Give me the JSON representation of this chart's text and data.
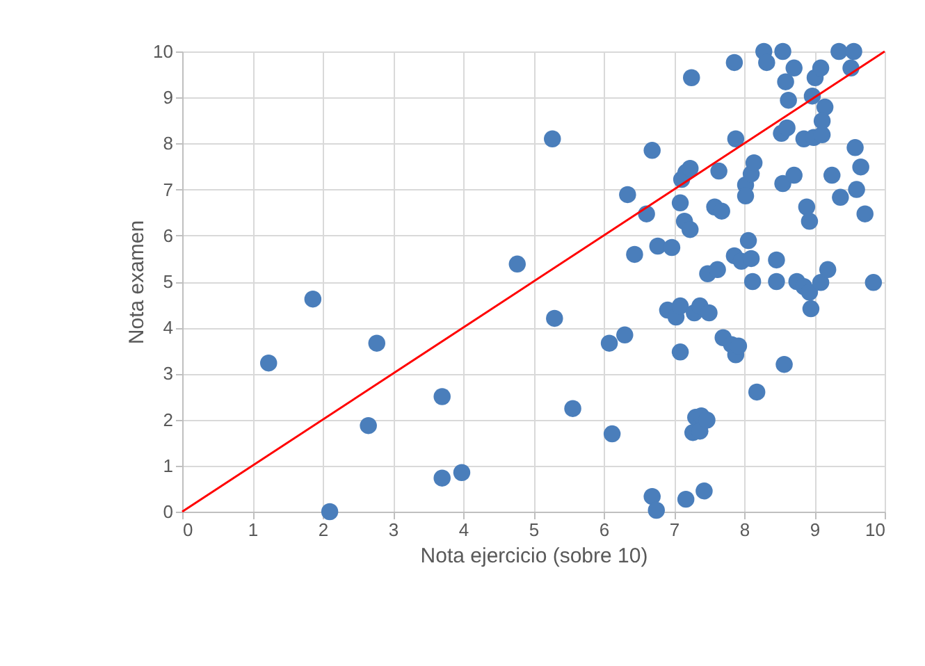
{
  "chart_data": {
    "type": "scatter",
    "xlabel": "Nota ejercicio (sobre 10)",
    "ylabel": "Nota examen",
    "xlim": [
      0,
      10
    ],
    "ylim": [
      0,
      10
    ],
    "xticks": [
      0,
      1,
      2,
      3,
      4,
      5,
      6,
      7,
      8,
      9,
      10
    ],
    "yticks": [
      0,
      1,
      2,
      3,
      4,
      5,
      6,
      7,
      8,
      9,
      10
    ],
    "grid": true,
    "series": [
      {
        "color": "#4a7ebb",
        "marker": "circle",
        "x": [
          1.23,
          1.86,
          2.77,
          2.65,
          2.1,
          3.7,
          3.7,
          3.98,
          4.77,
          5.27,
          5.3,
          5.56,
          6.12,
          6.08,
          6.3,
          6.34,
          6.44,
          6.61,
          6.69,
          6.77,
          6.69,
          6.75,
          6.97,
          6.91,
          7.03,
          7.09,
          7.11,
          7.17,
          7.23,
          7.09,
          7.15,
          7.23,
          7.09,
          7.17,
          7.25,
          7.29,
          7.37,
          7.31,
          7.39,
          7.27,
          7.37,
          7.47,
          7.43,
          7.5,
          7.48,
          7.62,
          7.58,
          7.68,
          7.64,
          7.7,
          7.82,
          7.88,
          7.92,
          7.86,
          7.88,
          7.86,
          7.96,
          8.02,
          8.02,
          8.1,
          8.14,
          8.06,
          8.1,
          8.12,
          8.18,
          8.28,
          8.32,
          8.46,
          8.46,
          8.55,
          8.57,
          8.55,
          8.53,
          8.61,
          8.59,
          8.63,
          8.71,
          8.71,
          8.75,
          8.85,
          8.89,
          8.93,
          8.93,
          8.95,
          8.85,
          8.97,
          9.01,
          9.09,
          8.99,
          9.11,
          9.15,
          9.11,
          9.09,
          9.19,
          9.25,
          9.37,
          9.35,
          9.52,
          9.56,
          9.58,
          9.6,
          9.66,
          9.72,
          9.84
        ],
        "values": [
          3.23,
          4.62,
          3.66,
          1.87,
          0,
          2.5,
          0.73,
          0.85,
          5.38,
          8.1,
          4.2,
          2.24,
          1.69,
          3.66,
          3.84,
          6.89,
          5.59,
          6.47,
          7.85,
          5.77,
          0.33,
          0.03,
          5.74,
          4.38,
          4.23,
          4.47,
          7.22,
          7.37,
          7.46,
          6.71,
          6.31,
          6.13,
          3.47,
          0.27,
          9.43,
          4.32,
          4.47,
          2.05,
          2.08,
          1.72,
          1.75,
          1.99,
          0.45,
          4.32,
          5.17,
          5.26,
          6.62,
          6.53,
          7.4,
          3.78,
          3.63,
          3.41,
          3.6,
          9.76,
          8.1,
          5.56,
          5.44,
          7.1,
          6.86,
          7.34,
          7.58,
          5.89,
          5.5,
          5.0,
          2.6,
          10,
          9.76,
          5.47,
          5.0,
          10,
          3.2,
          7.13,
          8.22,
          8.34,
          9.34,
          8.94,
          9.64,
          7.31,
          5.0,
          4.89,
          6.62,
          6.31,
          4.77,
          4.41,
          8.1,
          9.03,
          9.43,
          9.64,
          8.13,
          8.19,
          8.79,
          8.49,
          4.98,
          5.26,
          7.31,
          6.83,
          10,
          9.64,
          10,
          7.91,
          7.0,
          7.49,
          6.47,
          4.98
        ]
      },
      {
        "type": "line",
        "marker": "none",
        "line_style": "solid",
        "color": "#ff0000",
        "x": [
          0,
          10
        ],
        "values": [
          0,
          10
        ]
      }
    ]
  }
}
